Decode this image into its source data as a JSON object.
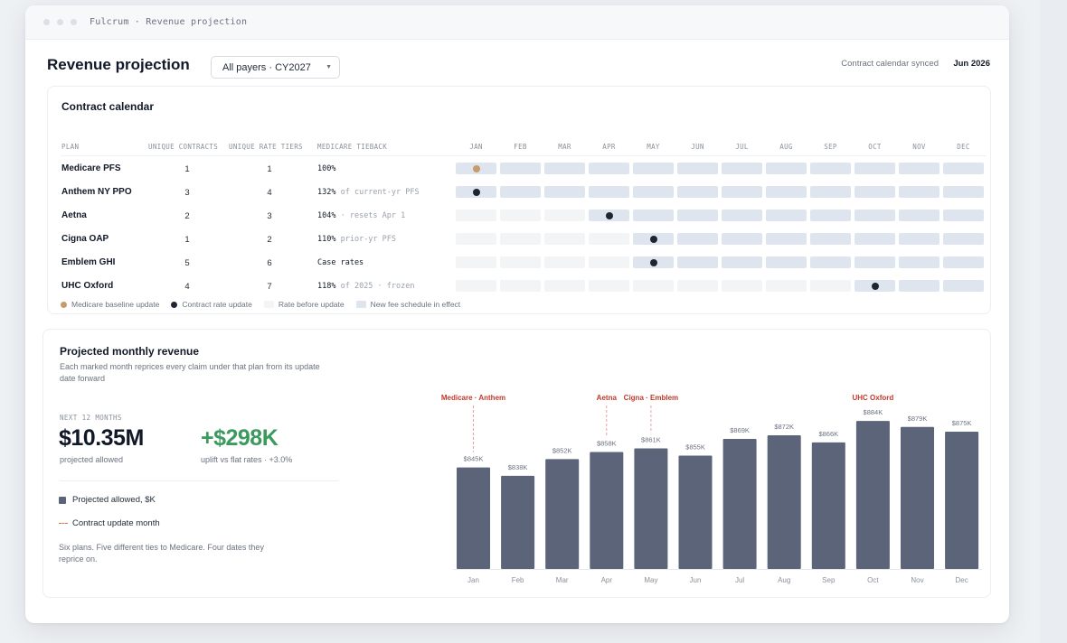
{
  "window": {
    "title": "Fulcrum · Revenue projection"
  },
  "header": {
    "title": "Revenue projection",
    "payer_select": "All payers · CY2027",
    "sync_label": "Contract calendar synced",
    "sync_date": "Jun 2026"
  },
  "calendar": {
    "title": "Contract calendar",
    "columns": {
      "plan": "PLAN",
      "contracts": "UNIQUE CONTRACTS",
      "tiers": "UNIQUE RATE TIERS",
      "tieback": "MEDICARE TIEBACK"
    },
    "months": [
      "JAN",
      "FEB",
      "MAR",
      "APR",
      "MAY",
      "JUN",
      "JUL",
      "AUG",
      "SEP",
      "OCT",
      "NOV",
      "DEC"
    ],
    "rows": [
      {
        "plan": "Medicare PFS",
        "contracts": "1",
        "tiers": "1",
        "tie_value": "100%",
        "tie_note": "",
        "update_month": 0,
        "marker": "baseline"
      },
      {
        "plan": "Anthem NY PPO",
        "contracts": "3",
        "tiers": "4",
        "tie_value": "132%",
        "tie_note": " of current-yr PFS",
        "update_month": 0,
        "marker": "contract"
      },
      {
        "plan": "Aetna",
        "contracts": "2",
        "tiers": "3",
        "tie_value": "104%",
        "tie_note": " · resets Apr 1",
        "update_month": 3,
        "marker": "contract"
      },
      {
        "plan": "Cigna OAP",
        "contracts": "1",
        "tiers": "2",
        "tie_value": "110%",
        "tie_note": " prior-yr PFS",
        "update_month": 4,
        "marker": "contract"
      },
      {
        "plan": "Emblem GHI",
        "contracts": "5",
        "tiers": "6",
        "tie_value": "Case rates",
        "tie_note": "",
        "update_month": 4,
        "marker": "contract"
      },
      {
        "plan": "UHC Oxford",
        "contracts": "4",
        "tiers": "7",
        "tie_value": "118%",
        "tie_note": " of 2025 · frozen",
        "update_month": 9,
        "marker": "contract"
      }
    ],
    "legend": {
      "baseline": "Medicare baseline update",
      "contract": "Contract rate update",
      "before": "Rate before update",
      "after": "New fee schedule in effect"
    },
    "colors": {
      "baseline": "#c79c6c",
      "contract": "#1e2533",
      "before": "#f3f4f6",
      "after": "#dee5ee"
    }
  },
  "revenue": {
    "title": "Projected monthly revenue",
    "subtitle": "Each marked month reprices every claim under that plan from its update date forward",
    "kpi_label": "NEXT 12 MONTHS",
    "kpi_value": "$10.35M",
    "kpi_sub": "projected allowed",
    "uplift_value": "+$298K",
    "uplift_sub": "uplift vs flat rates · +3.0%",
    "legend_series": "Projected allowed, $K",
    "legend_marker": "Contract update month",
    "footnote": "Six plans. Five different ties to Medicare. Four dates they reprice on."
  },
  "chart_data": {
    "type": "bar",
    "categories": [
      "Jan",
      "Feb",
      "Mar",
      "Apr",
      "May",
      "Jun",
      "Jul",
      "Aug",
      "Sep",
      "Oct",
      "Nov",
      "Dec"
    ],
    "values": [
      845,
      838,
      852,
      858,
      861,
      855,
      869,
      872,
      866,
      884,
      879,
      875
    ],
    "value_labels": [
      "$845K",
      "$838K",
      "$852K",
      "$858K",
      "$861K",
      "$855K",
      "$869K",
      "$872K",
      "$866K",
      "$884K",
      "$879K",
      "$875K"
    ],
    "ylim": [
      760,
      900
    ],
    "bar_color": "#5b6479",
    "annotation_color": "#c0392b",
    "marker_line_color": "#e8a3a3",
    "annotations": [
      {
        "category": "Jan",
        "label": "Medicare · Anthem"
      },
      {
        "category": "Apr",
        "label": "Aetna"
      },
      {
        "category": "May",
        "label": "Cigna · Emblem"
      },
      {
        "category": "Oct",
        "label": "UHC Oxford"
      }
    ],
    "grid": false,
    "legend": "left"
  }
}
